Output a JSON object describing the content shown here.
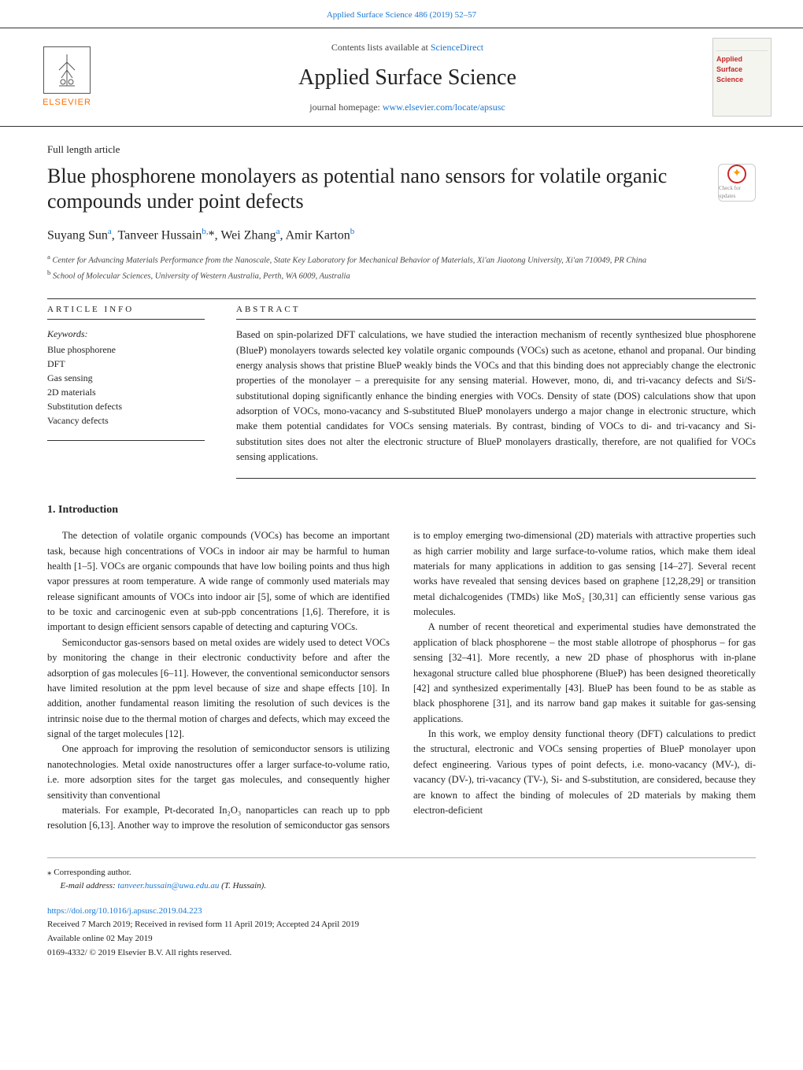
{
  "top_citation": "Applied Surface Science 486 (2019) 52–57",
  "header": {
    "publisher_name": "ELSEVIER",
    "contents_prefix": "Contents lists available at ",
    "contents_link": "ScienceDirect",
    "journal_name": "Applied Surface Science",
    "homepage_prefix": "journal homepage: ",
    "homepage_url": "www.elsevier.com/locate/apsusc",
    "cover_title": "Applied Surface Science"
  },
  "article": {
    "type": "Full length article",
    "title": "Blue phosphorene monolayers as potential nano sensors for volatile organic compounds under point defects",
    "check_label": "Check for updates",
    "authors_html": "Suyang Sun<sup>a</sup>, Tanveer Hussain<sup>b,</sup>*, Wei Zhang<sup>a</sup>, Amir Karton<sup>b</sup>",
    "affiliations": {
      "a": "Center for Advancing Materials Performance from the Nanoscale, State Key Laboratory for Mechanical Behavior of Materials, Xi'an Jiaotong University, Xi'an 710049, PR China",
      "b": "School of Molecular Sciences, University of Western Australia, Perth, WA 6009, Australia"
    }
  },
  "info": {
    "heading": "ARTICLE INFO",
    "keywords_label": "Keywords:",
    "keywords": [
      "Blue phosphorene",
      "DFT",
      "Gas sensing",
      "2D materials",
      "Substitution defects",
      "Vacancy defects"
    ]
  },
  "abstract": {
    "heading": "ABSTRACT",
    "text": "Based on spin-polarized DFT calculations, we have studied the interaction mechanism of recently synthesized blue phosphorene (BlueP) monolayers towards selected key volatile organic compounds (VOCs) such as acetone, ethanol and propanal. Our binding energy analysis shows that pristine BlueP weakly binds the VOCs and that this binding does not appreciably change the electronic properties of the monolayer – a prerequisite for any sensing material. However, mono, di, and tri-vacancy defects and Si/S-substitutional doping significantly enhance the binding energies with VOCs. Density of state (DOS) calculations show that upon adsorption of VOCs, mono-vacancy and S-substituted BlueP monolayers undergo a major change in electronic structure, which make them potential candidates for VOCs sensing materials. By contrast, binding of VOCs to di- and tri-vacancy and Si-substitution sites does not alter the electronic structure of BlueP monolayers drastically, therefore, are not qualified for VOCs sensing applications."
  },
  "intro": {
    "heading": "1. Introduction",
    "p1": "The detection of volatile organic compounds (VOCs) has become an important task, because high concentrations of VOCs in indoor air may be harmful to human health [1–5]. VOCs are organic compounds that have low boiling points and thus high vapor pressures at room temperature. A wide range of commonly used materials may release significant amounts of VOCs into indoor air [5], some of which are identified to be toxic and carcinogenic even at sub-ppb concentrations [1,6]. Therefore, it is important to design efficient sensors capable of detecting and capturing VOCs.",
    "p2": "Semiconductor gas-sensors based on metal oxides are widely used to detect VOCs by monitoring the change in their electronic conductivity before and after the adsorption of gas molecules [6–11]. However, the conventional semiconductor sensors have limited resolution at the ppm level because of size and shape effects [10]. In addition, another fundamental reason limiting the resolution of such devices is the intrinsic noise due to the thermal motion of charges and defects, which may exceed the signal of the target molecules [12].",
    "p3": "One approach for improving the resolution of semiconductor sensors is utilizing nanotechnologies. Metal oxide nanostructures offer a larger surface-to-volume ratio, i.e. more adsorption sites for the target gas molecules, and consequently higher sensitivity than conventional",
    "p4": "materials. For example, Pt-decorated In₂O₃ nanoparticles can reach up to ppb resolution [6,13]. Another way to improve the resolution of semiconductor gas sensors is to employ emerging two-dimensional (2D) materials with attractive properties such as high carrier mobility and large surface-to-volume ratios, which make them ideal materials for many applications in addition to gas sensing [14–27]. Several recent works have revealed that sensing devices based on graphene [12,28,29] or transition metal dichalcogenides (TMDs) like MoS₂ [30,31] can efficiently sense various gas molecules.",
    "p5": "A number of recent theoretical and experimental studies have demonstrated the application of black phosphorene – the most stable allotrope of phosphorus – for gas sensing [32–41]. More recently, a new 2D phase of phosphorus with in-plane hexagonal structure called blue phosphorene (BlueP) has been designed theoretically [42] and synthesized experimentally [43]. BlueP has been found to be as stable as black phosphorene [31], and its narrow band gap makes it suitable for gas-sensing applications.",
    "p6": "In this work, we employ density functional theory (DFT) calculations to predict the structural, electronic and VOCs sensing properties of BlueP monolayer upon defect engineering. Various types of point defects, i.e. mono-vacancy (MV-), di-vacancy (DV-), tri-vacancy (TV-), Si- and S-substitution, are considered, because they are known to affect the binding of molecules of 2D materials by making them electron-deficient"
  },
  "footer": {
    "corresponding": "⁎ Corresponding author.",
    "email_label": "E-mail address: ",
    "email": "tanveer.hussain@uwa.edu.au",
    "email_suffix": " (T. Hussain).",
    "doi": "https://doi.org/10.1016/j.apsusc.2019.04.223",
    "received": "Received 7 March 2019; Received in revised form 11 April 2019; Accepted 24 April 2019",
    "available": "Available online 02 May 2019",
    "copyright": "0169-4332/ © 2019 Elsevier B.V. All rights reserved."
  },
  "colors": {
    "link": "#1976d2",
    "elsevier_orange": "#ff6f00",
    "check_red": "#c62828",
    "check_orange": "#ff9800"
  }
}
